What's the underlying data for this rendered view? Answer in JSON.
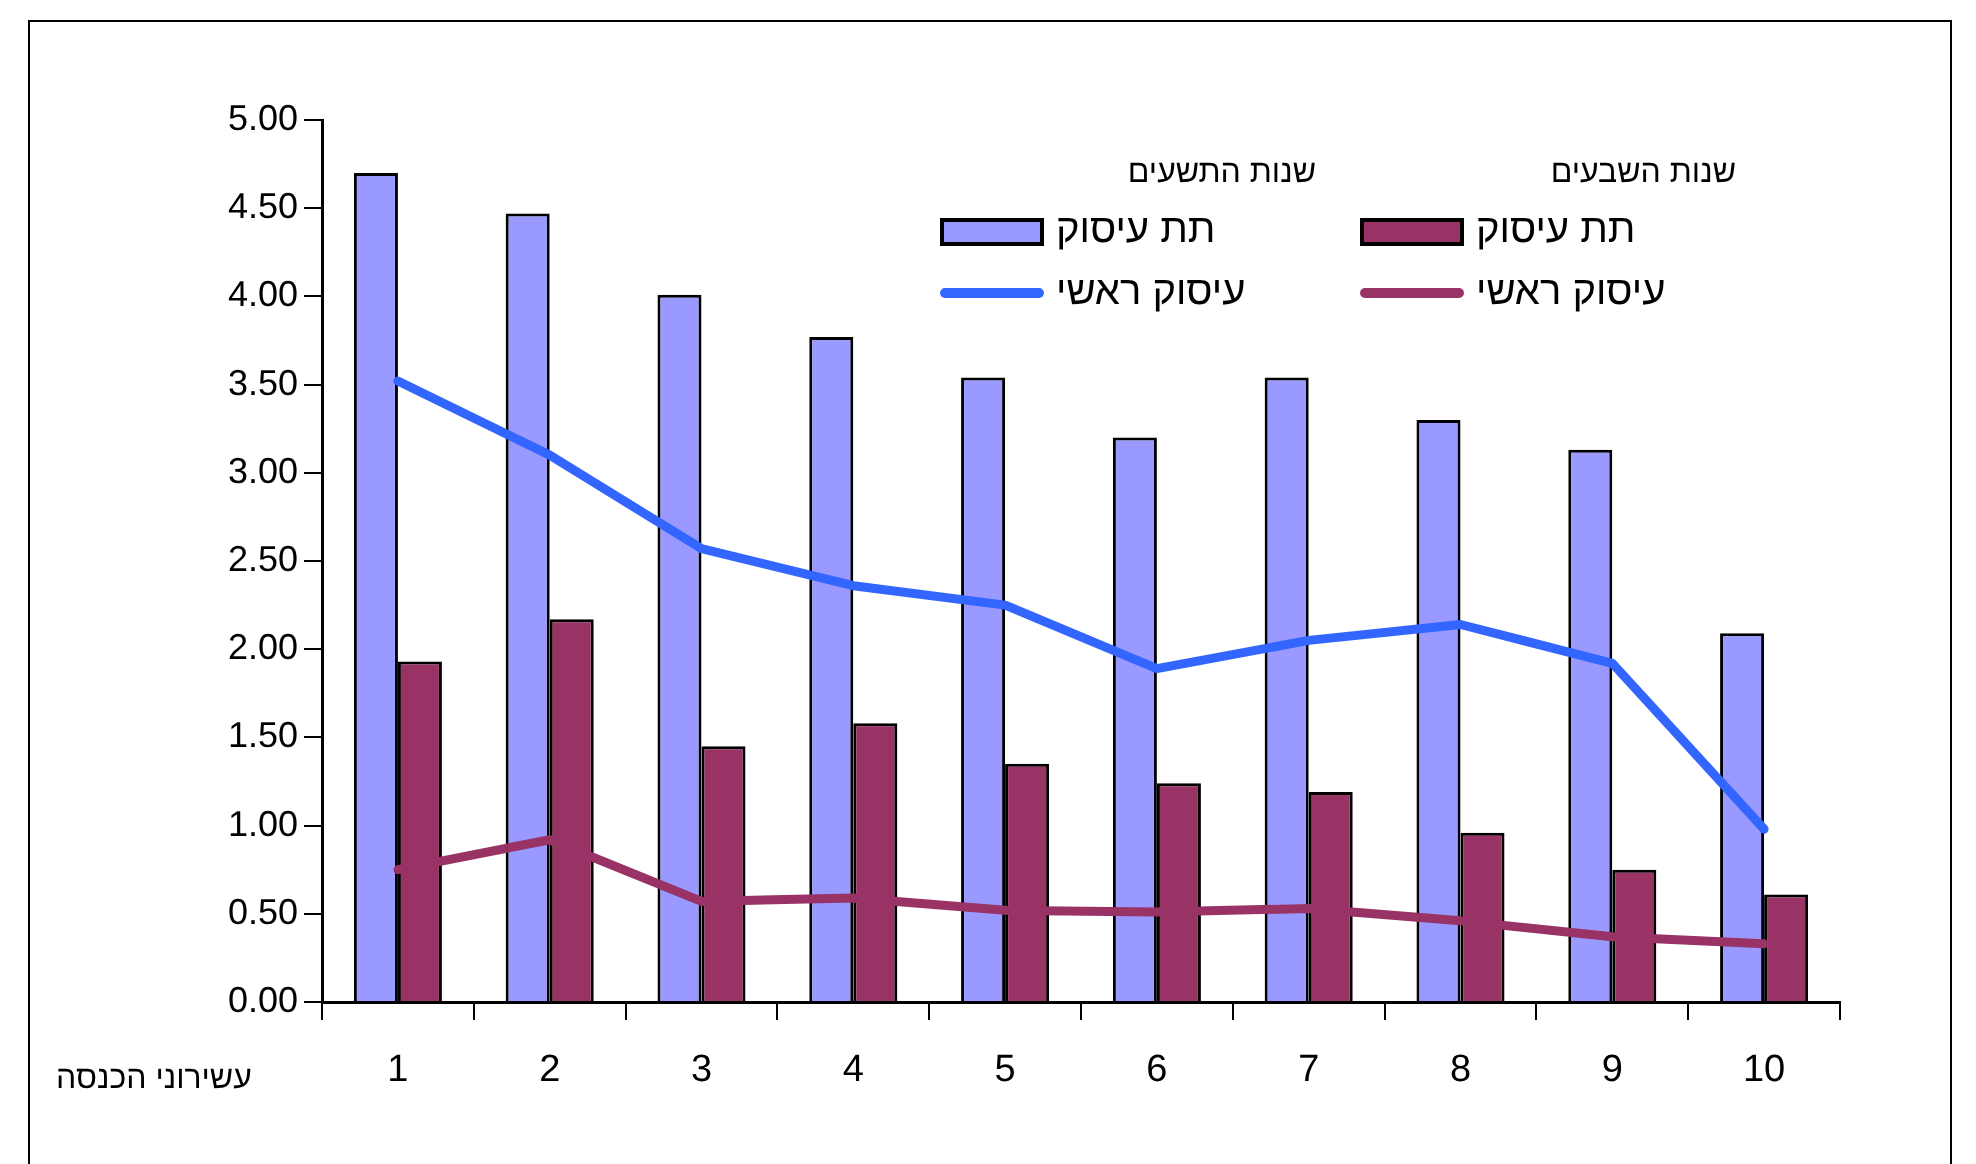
{
  "chart_data": {
    "type": "bar",
    "xlabel": "עשירוני הכנסה",
    "categories": [
      "1",
      "2",
      "3",
      "4",
      "5",
      "6",
      "7",
      "8",
      "9",
      "10"
    ],
    "series": [
      {
        "name": "תת עיסוק",
        "color": "#9999ff",
        "values": [
          4.7,
          4.47,
          4.01,
          3.77,
          3.54,
          3.2,
          3.54,
          3.3,
          3.13,
          2.09
        ]
      },
      {
        "name": "תת עיסוק",
        "color": "#993366",
        "values": [
          1.93,
          2.17,
          1.45,
          1.58,
          1.35,
          1.24,
          1.19,
          0.96,
          0.75,
          0.61
        ]
      },
      {
        "name": "עיסוק ראשי",
        "type": "line",
        "color": "#3366ff",
        "values": [
          3.52,
          3.1,
          2.57,
          2.36,
          2.25,
          1.89,
          2.05,
          2.14,
          1.92,
          0.98
        ]
      },
      {
        "name": "עיסוק ראשי",
        "type": "line",
        "color": "#993366",
        "values": [
          0.75,
          0.92,
          0.57,
          0.59,
          0.52,
          0.51,
          0.53,
          0.46,
          0.37,
          0.33
        ]
      }
    ],
    "annotations": [
      "שנות התשעים",
      "שנות השבעים"
    ],
    "ylim": [
      0,
      5
    ],
    "yticks": [
      {
        "value": 0,
        "label": "0.00"
      },
      {
        "value": 0.5,
        "label": "0.50"
      },
      {
        "value": 1,
        "label": "1.00"
      },
      {
        "value": 1.5,
        "label": "1.50"
      },
      {
        "value": 2,
        "label": "2.00"
      },
      {
        "value": 2.5,
        "label": "2.50"
      },
      {
        "value": 3,
        "label": "3.00"
      },
      {
        "value": 3.5,
        "label": "3.50"
      },
      {
        "value": 4,
        "label": "4.00"
      },
      {
        "value": 4.5,
        "label": "4.50"
      },
      {
        "value": 5,
        "label": "5.00"
      }
    ],
    "grid": false,
    "legend": "top right",
    "marker": "none",
    "line_style": "solid"
  }
}
